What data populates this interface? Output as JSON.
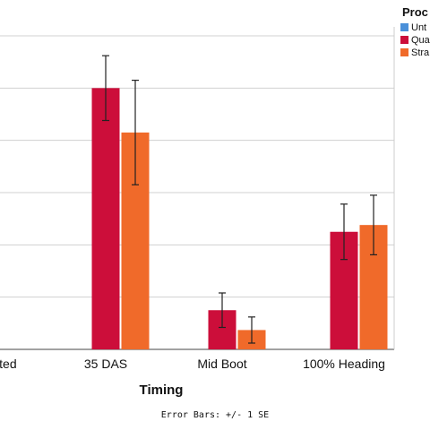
{
  "chart_data": {
    "type": "bar",
    "title": "",
    "xlabel": "Timing",
    "ylabel": "",
    "ylim": [
      0,
      6
    ],
    "grid": true,
    "categories": [
      "ated",
      "35 DAS",
      "Mid Boot",
      "100% Heading"
    ],
    "series": [
      {
        "name": "Unt",
        "color": "#4a90d9",
        "values": [
          0,
          0,
          0,
          0
        ],
        "errors": [
          0,
          0,
          0,
          0
        ]
      },
      {
        "name": "Qua",
        "color": "#cc0e3a",
        "values": [
          0,
          5.0,
          0.75,
          2.25
        ],
        "errors": [
          0,
          0.62,
          0.33,
          0.53
        ]
      },
      {
        "name": "Stra",
        "color": "#f06a2a",
        "values": [
          0,
          4.15,
          0.37,
          2.38
        ],
        "errors": [
          0,
          1.0,
          0.25,
          0.57
        ]
      }
    ],
    "legend": {
      "title": "Proc",
      "placement": "top-right"
    },
    "footnote": "Error Bars: +/- 1 SE"
  }
}
